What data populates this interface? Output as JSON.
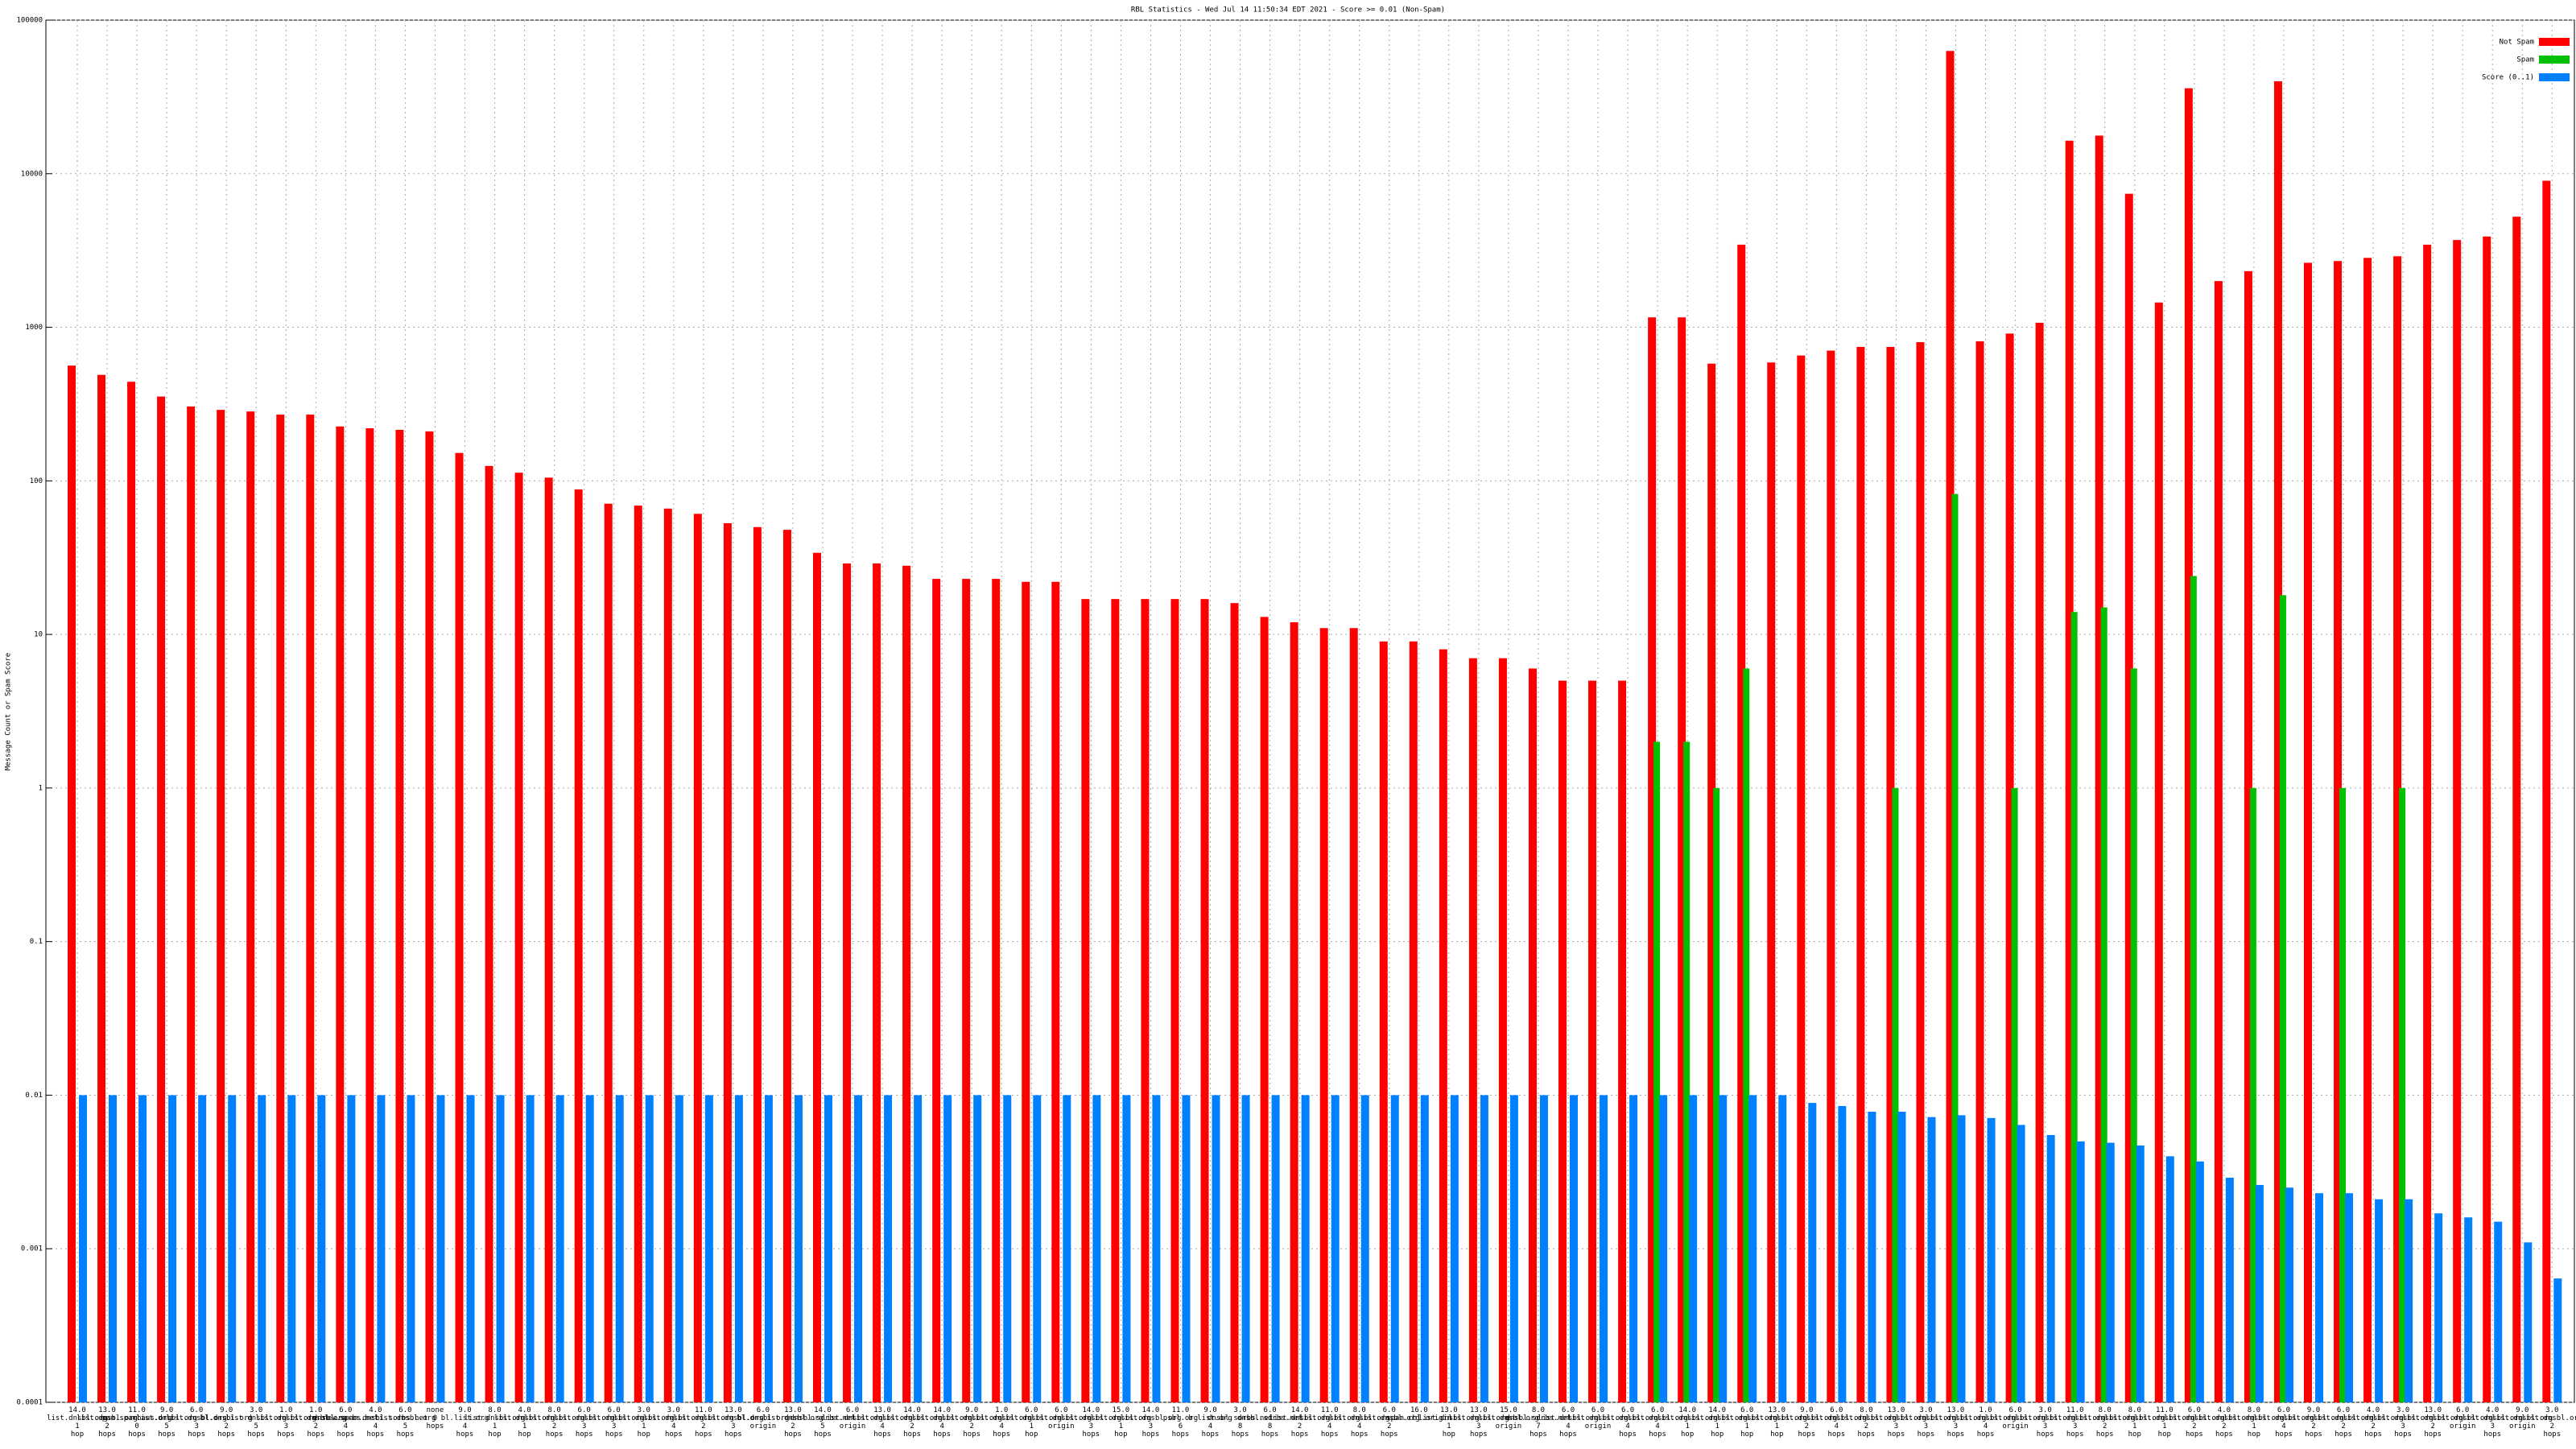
{
  "chart_data": {
    "type": "bar",
    "title": "RBL Statistics - Wed Jul 14 11:50:34 EDT 2021 - Score >= 0.01 (Non-Spam)",
    "y_label": "Message Count or Spam Score",
    "log_scale": true,
    "grid": true,
    "legend": "top-right",
    "ylim": [
      0.0001,
      100000
    ],
    "yticks": [
      0.0001,
      0.001,
      0.01,
      0.1,
      1,
      10,
      100,
      1000,
      10000,
      100000
    ],
    "categories": [
      "14.0 list.dnsbl.org 1 hop",
      "13.0 list.dnsbl.org 2 hops",
      "11.0 pan.spamhaus.org 0 hops",
      "9.0 list.dnsbl.org 5 hops",
      "6.0 list.dnsbl.org 3 hops",
      "9.0 bl.dnsbl.org 2 hops",
      "3.0 list.dnsbl.org 5 hops",
      "1.0 list.dnsbl.org 3 hops",
      "1.0 list.dnsbl.org 2 hops",
      "6.0 dnsbl.sorbs.net 4 hops",
      "4.0 new.spam.dnsbl.sorbs.net 4 hops",
      "6.0 list.dnsbl.org 5 hops",
      "none 0 hops",
      "9.0 bl.list.org 4 hops",
      "8.0 list.dnsbl.org 1 hop",
      "4.0 list.dnsbl.org 1 hop",
      "8.0 list.dnsbl.org 2 hops",
      "6.0 list.dnsbl.org 3 hops",
      "6.0 list.dnsbl.org 3 hops",
      "3.0 list.dnsbl.org 1 hop",
      "3.0 list.dnsbl.org 4 hops",
      "11.0 list.dnsbl.org 2 hops",
      "13.0 list.dnsbl.org 3 hops",
      "6.0 bl.dnsbl.org origin",
      "13.0 list.dnsbl.org 2 hops",
      "14.0 dnsbl.sorbs.net 5 hops",
      "6.0 list.dnsbl.org origin",
      "13.0 list.dnsbl.org 4 hops",
      "14.0 list.dnsbl.org 2 hops",
      "14.0 list.dnsbl.org 4 hops",
      "9.0 list.dnsbl.org 2 hops",
      "1.0 list.dnsbl.org 4 hops",
      "6.0 list.dnsbl.org 1 hop",
      "6.0 list.dnsbl.org origin",
      "14.0 list.dnsbl.org 3 hops",
      "15.0 list.dnsbl.org 1 hop",
      "14.0 list.dnsbl.org 3 hops",
      "11.0 psbl.org 6 hops",
      "9.0 b.list.org 4 hops",
      "3.0 dnsbl.sorbs.net 8 hops",
      "6.0 dnsbl.sorbs.net 8 hops",
      "14.0 list.dnsbl.org 2 hops",
      "11.0 list.dnsbl.org 4 hops",
      "8.0 list.dnsbl.org 4 hops",
      "6.0 list.dnsbl.org 2 hops",
      "16.0 spam.cbl.origin",
      "13.0 list.dnsbl.org 1 hop",
      "13.0 list.dnsbl.org 3 hops",
      "15.0 list.dnsbl.org origin",
      "8.0 dnsbl.sorbs.net 7 hops",
      "6.0 list.dnsbl.org 4 hops",
      "6.0 list.dnsbl.org origin",
      "6.0 list.dnsbl.org 4 hops",
      "6.0 list.dnsbl.org 4 hops",
      "14.0 list.dnsbl.org 1 hop",
      "14.0 list.dnsbl.org 1 hop",
      "6.0 list.dnsbl.org 1 hop",
      "13.0 list.dnsbl.org 1 hop",
      "9.0 list.dnsbl.org 2 hops",
      "6.0 list.dnsbl.org 4 hops",
      "8.0 list.dnsbl.org 2 hops",
      "13.0 list.dnsbl.org 3 hops",
      "3.0 list.dnsbl.org 3 hops",
      "13.0 list.dnsbl.org 3 hops",
      "1.0 list.dnsbl.org 4 hops",
      "6.0 list.dnsbl.org origin",
      "3.0 list.dnsbl.org 3 hops",
      "11.0 list.dnsbl.org 3 hops",
      "8.0 list.dnsbl.org 2 hops",
      "8.0 list.dnsbl.org 1 hop",
      "11.0 list.dnsbl.org 1 hop",
      "6.0 list.dnsbl.org 2 hops",
      "4.0 list.dnsbl.org 2 hops",
      "8.0 list.dnsbl.org 1 hop",
      "6.0 list.dnsbl.org 4 hops",
      "9.0 list.dnsbl.org 2 hops",
      "6.0 list.dnsbl.org 2 hops",
      "4.0 list.dnsbl.org 2 hops",
      "3.0 list.dnsbl.org 3 hops",
      "13.0 list.dnsbl.org 2 hops",
      "6.0 list.dnsbl.org origin",
      "4.0 list.dnsbl.org 3 hops",
      "9.0 list.dnsbl.org origin",
      "3.0 list.dnsbl.org 2 hops"
    ],
    "series": [
      {
        "name": "Not Spam",
        "color": "#ff0000",
        "values": [
          563,
          490,
          442,
          354,
          305,
          290,
          283,
          270,
          270,
          226,
          220,
          215,
          210,
          152,
          125,
          113,
          105,
          88,
          71,
          69,
          66,
          61,
          53,
          50,
          48,
          34,
          29,
          29,
          28,
          23,
          23,
          23,
          22,
          22,
          17,
          17,
          17,
          17,
          17,
          16,
          13,
          12,
          11,
          11,
          9,
          9,
          8,
          7,
          7,
          6,
          5,
          5,
          5,
          1160,
          1160,
          580,
          3450,
          590,
          655,
          705,
          745,
          745,
          800,
          63000,
          810,
          910,
          1070,
          16400,
          17700,
          7400,
          1450,
          36000,
          2000,
          2320,
          40000,
          2630,
          2700,
          2830,
          2900,
          3450,
          3700,
          3900,
          5250,
          9000
        ]
      },
      {
        "name": "Spam",
        "color": "#00c000",
        "values": [
          null,
          null,
          null,
          null,
          null,
          null,
          null,
          null,
          null,
          null,
          null,
          null,
          null,
          null,
          null,
          null,
          null,
          null,
          null,
          null,
          null,
          null,
          null,
          null,
          null,
          null,
          null,
          null,
          null,
          null,
          null,
          null,
          null,
          null,
          null,
          null,
          null,
          null,
          null,
          null,
          null,
          null,
          null,
          null,
          null,
          null,
          null,
          null,
          null,
          null,
          null,
          null,
          null,
          2,
          2,
          1,
          6,
          null,
          null,
          null,
          null,
          1,
          null,
          82,
          null,
          1,
          null,
          14,
          15,
          6,
          null,
          24,
          null,
          1,
          18,
          null,
          1,
          null,
          1,
          null,
          null,
          null,
          null,
          null
        ]
      },
      {
        "name": "Score (0..1)",
        "color": "#0080ff",
        "values": [
          0.01,
          0.01,
          0.01,
          0.01,
          0.01,
          0.01,
          0.01,
          0.01,
          0.01,
          0.01,
          0.01,
          0.01,
          0.01,
          0.01,
          0.01,
          0.01,
          0.01,
          0.01,
          0.01,
          0.01,
          0.01,
          0.01,
          0.01,
          0.01,
          0.01,
          0.01,
          0.01,
          0.01,
          0.01,
          0.01,
          0.01,
          0.01,
          0.01,
          0.01,
          0.01,
          0.01,
          0.01,
          0.01,
          0.01,
          0.01,
          0.01,
          0.01,
          0.01,
          0.01,
          0.01,
          0.01,
          0.01,
          0.01,
          0.01,
          0.01,
          0.01,
          0.01,
          0.01,
          0.01,
          0.01,
          0.01,
          0.01,
          0.01,
          0.0089,
          0.0085,
          0.0078,
          0.0078,
          0.0072,
          0.0074,
          0.0071,
          0.0064,
          0.0055,
          0.005,
          0.0049,
          0.0047,
          0.004,
          0.0037,
          0.0029,
          0.0026,
          0.0025,
          0.0023,
          0.0023,
          0.0021,
          0.0021,
          0.0017,
          0.0016,
          0.0015,
          0.0011,
          0.00064
        ]
      }
    ]
  }
}
